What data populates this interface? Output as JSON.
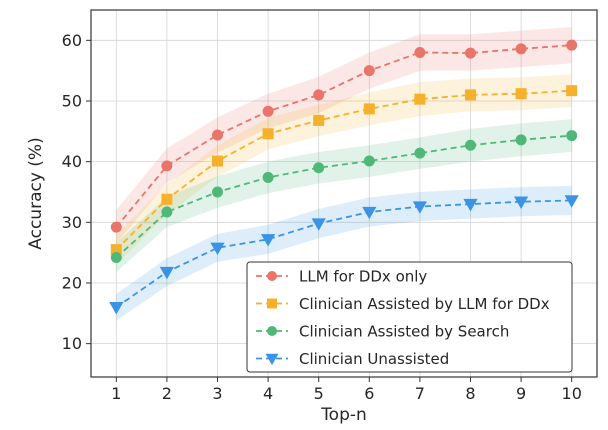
{
  "chart_data": {
    "type": "line",
    "xlabel": "Top-n",
    "ylabel": "Accuracy (%)",
    "x": [
      1,
      2,
      3,
      4,
      5,
      6,
      7,
      8,
      9,
      10
    ],
    "xlim": [
      0.5,
      10.5
    ],
    "ylim": [
      4.5,
      65
    ],
    "yticks": [
      10,
      20,
      30,
      40,
      50,
      60
    ],
    "grid": true,
    "legend_position": "lower-right",
    "series": [
      {
        "name": "LLM for DDx only",
        "color": "#e8746a",
        "marker": "circle",
        "values": [
          29.2,
          39.3,
          44.4,
          48.3,
          51.0,
          55.0,
          58.0,
          57.9,
          58.6,
          59.2
        ],
        "band_lower": [
          26.5,
          36.5,
          41.5,
          45.5,
          48.0,
          52.0,
          55.0,
          55.0,
          55.6,
          56.2
        ],
        "band_upper": [
          32.0,
          42.2,
          47.3,
          51.2,
          54.0,
          58.0,
          61.0,
          61.0,
          61.6,
          62.2
        ]
      },
      {
        "name": "Clinician Assisted by LLM for DDx",
        "color": "#f5b02c",
        "marker": "square",
        "values": [
          25.5,
          33.8,
          40.1,
          44.6,
          46.8,
          48.7,
          50.3,
          51.0,
          51.2,
          51.7
        ],
        "band_lower": [
          23.0,
          31.3,
          37.5,
          42.0,
          44.2,
          46.0,
          47.5,
          48.3,
          48.5,
          49.0
        ],
        "band_upper": [
          28.0,
          36.3,
          42.7,
          47.2,
          49.4,
          51.4,
          53.1,
          53.7,
          53.9,
          54.4
        ]
      },
      {
        "name": "Clinician Assisted by Search",
        "color": "#4fb878",
        "marker": "circle",
        "values": [
          24.2,
          31.7,
          35.0,
          37.4,
          39.0,
          40.1,
          41.4,
          42.7,
          43.6,
          44.3
        ],
        "band_lower": [
          21.8,
          29.2,
          32.4,
          34.8,
          36.4,
          37.5,
          38.8,
          40.0,
          40.9,
          41.6
        ],
        "band_upper": [
          26.6,
          34.2,
          37.6,
          40.0,
          41.6,
          42.7,
          44.0,
          45.4,
          46.3,
          47.0
        ]
      },
      {
        "name": "Clinician Unassisted",
        "color": "#3b93e4",
        "marker": "triangle-down",
        "values": [
          16.0,
          21.8,
          25.8,
          27.2,
          29.8,
          31.7,
          32.6,
          33.0,
          33.4,
          33.6
        ],
        "band_lower": [
          13.8,
          19.5,
          23.5,
          24.8,
          27.4,
          29.3,
          30.2,
          30.6,
          31.0,
          31.2
        ],
        "band_upper": [
          18.2,
          24.1,
          28.1,
          29.6,
          32.2,
          34.1,
          35.0,
          35.4,
          35.8,
          36.0
        ]
      }
    ]
  }
}
